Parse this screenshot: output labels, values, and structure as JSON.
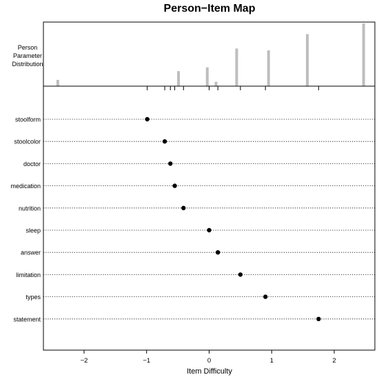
{
  "chart_data": {
    "type": "scatter",
    "title": "Person−Item Map",
    "xlabel": "Item Difficulty",
    "xlim": [
      -2.65,
      2.65
    ],
    "x_ticks": [
      -2,
      -1,
      0,
      1,
      2
    ],
    "x_tick_labels": [
      "−2",
      "−1",
      "0",
      "1",
      "2"
    ],
    "person_panel_label": [
      "Person",
      "Parameter",
      "Distribution"
    ],
    "person_distribution": [
      {
        "theta": -2.42,
        "height": 0.1
      },
      {
        "theta": -0.49,
        "height": 0.24
      },
      {
        "theta": -0.03,
        "height": 0.3
      },
      {
        "theta": 0.11,
        "height": 0.07
      },
      {
        "theta": 0.44,
        "height": 0.6
      },
      {
        "theta": 0.95,
        "height": 0.57
      },
      {
        "theta": 1.57,
        "height": 0.83
      },
      {
        "theta": 2.47,
        "height": 1.0
      }
    ],
    "items": [
      {
        "name": "stoolform",
        "difficulty": -0.99
      },
      {
        "name": "stoolcolor",
        "difficulty": -0.71
      },
      {
        "name": "doctor",
        "difficulty": -0.62
      },
      {
        "name": "medication",
        "difficulty": -0.55
      },
      {
        "name": "nutrition",
        "difficulty": -0.41
      },
      {
        "name": "sleep",
        "difficulty": 0.0
      },
      {
        "name": "answer",
        "difficulty": 0.14
      },
      {
        "name": "limitation",
        "difficulty": 0.5
      },
      {
        "name": "types",
        "difficulty": 0.9
      },
      {
        "name": "statement",
        "difficulty": 1.75
      }
    ],
    "grid_lines": "dotted horizontal per item",
    "colors": {
      "bars": "#bebebe",
      "points": "#000000",
      "lines": "#000000"
    }
  }
}
